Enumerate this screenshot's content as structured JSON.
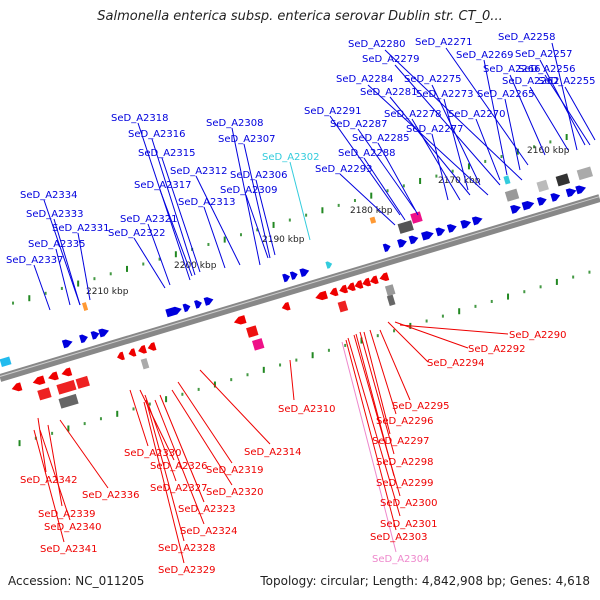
{
  "title": "Salmonella enterica subsp. enterica serovar Dublin str. CT_0...",
  "accession": "Accession: NC_011205",
  "topology": "Topology: circular; Length: 4,842,908 bp; Genes: 4,618",
  "colors": {
    "forward_gene": "#0000dd",
    "reverse_gene": "#ee0000",
    "highlight_cyan": "#33ccdd",
    "highlight_pink": "#ee88cc",
    "backbone": "#888888",
    "rna_magenta": "#ee1188",
    "tick_green": "#228822"
  },
  "ticks": [
    {
      "label": "2160 kbp"
    },
    {
      "label": "2170 kbp"
    },
    {
      "label": "2180 kbp"
    },
    {
      "label": "2190 kbp"
    },
    {
      "label": "2200 kbp"
    },
    {
      "label": "2210 kbp"
    }
  ],
  "labels_top": [
    {
      "text": "SeD_A2258",
      "style": "forward"
    },
    {
      "text": "SeD_A2271",
      "style": "forward"
    },
    {
      "text": "SeD_A2280",
      "style": "forward"
    },
    {
      "text": "SeD_A2269",
      "style": "forward"
    },
    {
      "text": "SeD_A2257",
      "style": "forward"
    },
    {
      "text": "SeD_A2279",
      "style": "forward"
    },
    {
      "text": "SeD_A2266",
      "style": "forward"
    },
    {
      "text": "SeD_A2256",
      "style": "forward"
    },
    {
      "text": "SeD_A2284",
      "style": "forward"
    },
    {
      "text": "SeD_A2275",
      "style": "forward"
    },
    {
      "text": "SeD_A2262",
      "style": "forward"
    },
    {
      "text": "SeD_A2255",
      "style": "forward"
    },
    {
      "text": "SeD_A2281",
      "style": "forward"
    },
    {
      "text": "SeD_A2273",
      "style": "forward"
    },
    {
      "text": "SeD_A2265",
      "style": "forward"
    },
    {
      "text": "SeD_A2291",
      "style": "forward"
    },
    {
      "text": "SeD_A2278",
      "style": "forward"
    },
    {
      "text": "SeD_A2270",
      "style": "forward"
    },
    {
      "text": "SeD_A2287",
      "style": "forward"
    },
    {
      "text": "SeD_A2277",
      "style": "forward"
    },
    {
      "text": "SeD_A2285",
      "style": "forward"
    },
    {
      "text": "SeD_A2288",
      "style": "forward"
    },
    {
      "text": "SeD_A2293",
      "style": "forward"
    },
    {
      "text": "SeD_A2318",
      "style": "forward"
    },
    {
      "text": "SeD_A2308",
      "style": "forward"
    },
    {
      "text": "SeD_A2316",
      "style": "forward"
    },
    {
      "text": "SeD_A2307",
      "style": "forward"
    },
    {
      "text": "SeD_A2315",
      "style": "forward"
    },
    {
      "text": "SeD_A2302",
      "style": "cyan"
    },
    {
      "text": "SeD_A2312",
      "style": "forward"
    },
    {
      "text": "SeD_A2306",
      "style": "forward"
    },
    {
      "text": "SeD_A2317",
      "style": "forward"
    },
    {
      "text": "SeD_A2309",
      "style": "forward"
    },
    {
      "text": "SeD_A2334",
      "style": "forward"
    },
    {
      "text": "SeD_A2313",
      "style": "forward"
    },
    {
      "text": "SeD_A2333",
      "style": "forward"
    },
    {
      "text": "SeD_A2321",
      "style": "forward"
    },
    {
      "text": "SeD_A2331",
      "style": "forward"
    },
    {
      "text": "SeD_A2322",
      "style": "forward"
    },
    {
      "text": "SeD_A2335",
      "style": "forward"
    },
    {
      "text": "SeD_A2337",
      "style": "forward"
    }
  ],
  "labels_bottom": [
    {
      "text": "SeD_A2290",
      "style": "reverse"
    },
    {
      "text": "SeD_A2292",
      "style": "reverse"
    },
    {
      "text": "SeD_A2294",
      "style": "reverse"
    },
    {
      "text": "SeD_A2310",
      "style": "reverse"
    },
    {
      "text": "SeD_A2295",
      "style": "reverse"
    },
    {
      "text": "SeD_A2296",
      "style": "reverse"
    },
    {
      "text": "SeD_A2297",
      "style": "reverse"
    },
    {
      "text": "SeD_A2314",
      "style": "reverse"
    },
    {
      "text": "SeD_A2330",
      "style": "reverse"
    },
    {
      "text": "SeD_A2298",
      "style": "reverse"
    },
    {
      "text": "SeD_A2326",
      "style": "reverse"
    },
    {
      "text": "SeD_A2319",
      "style": "reverse"
    },
    {
      "text": "SeD_A2342",
      "style": "reverse"
    },
    {
      "text": "SeD_A2299",
      "style": "reverse"
    },
    {
      "text": "SeD_A2327",
      "style": "reverse"
    },
    {
      "text": "SeD_A2320",
      "style": "reverse"
    },
    {
      "text": "SeD_A2336",
      "style": "reverse"
    },
    {
      "text": "SeD_A2300",
      "style": "reverse"
    },
    {
      "text": "SeD_A2339",
      "style": "reverse"
    },
    {
      "text": "SeD_A2323",
      "style": "reverse"
    },
    {
      "text": "SeD_A2301",
      "style": "reverse"
    },
    {
      "text": "SeD_A2340",
      "style": "reverse"
    },
    {
      "text": "SeD_A2324",
      "style": "reverse"
    },
    {
      "text": "SeD_A2303",
      "style": "reverse"
    },
    {
      "text": "SeD_A2341",
      "style": "reverse"
    },
    {
      "text": "SeD_A2328",
      "style": "reverse"
    },
    {
      "text": "SeD_A2304",
      "style": "pink"
    },
    {
      "text": "SeD_A2329",
      "style": "reverse"
    }
  ]
}
